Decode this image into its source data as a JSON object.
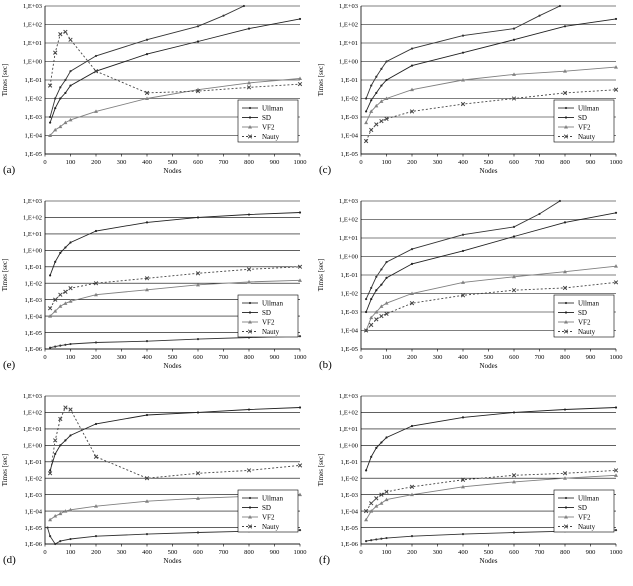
{
  "figure": {
    "series_styles": {
      "Ullman": {
        "color": "#333333",
        "dash": "",
        "marker": "dot"
      },
      "SD": {
        "color": "#222222",
        "dash": "",
        "marker": "dot"
      },
      "VF2": {
        "color": "#808080",
        "dash": "",
        "marker": "tri"
      },
      "Nauty": {
        "color": "#444444",
        "dash": "2,2",
        "marker": "x"
      }
    }
  },
  "chart_data": [
    {
      "type": "line",
      "panel_label": "(a)",
      "xlabel": "Nodes",
      "ylabel": "Times [sec]",
      "xlim": [
        0,
        1000
      ],
      "xticks": [
        0,
        100,
        200,
        300,
        400,
        500,
        600,
        700,
        800,
        900,
        1000
      ],
      "ylog": true,
      "ylim_exp": [
        -5,
        3
      ],
      "ytick_labels": [
        "1,E-05",
        "1,E-04",
        "1,E-03",
        "1,E-02",
        "1,E-01",
        "1,E+00",
        "1,E+01",
        "1,E+02",
        "1,E+03"
      ],
      "grid": "horizontal",
      "legend_position": "bottom-right",
      "series": [
        {
          "name": "Ullman",
          "x": [
            20,
            40,
            60,
            80,
            100,
            200,
            400,
            600,
            700,
            780
          ],
          "y": [
            0.001,
            0.01,
            0.04,
            0.1,
            0.3,
            2,
            15,
            80,
            300,
            1000
          ]
        },
        {
          "name": "SD",
          "x": [
            20,
            40,
            60,
            80,
            100,
            200,
            400,
            600,
            800,
            1000
          ],
          "y": [
            0.0005,
            0.003,
            0.01,
            0.02,
            0.05,
            0.3,
            2.5,
            12,
            60,
            200
          ]
        },
        {
          "name": "VF2",
          "x": [
            20,
            40,
            60,
            80,
            100,
            200,
            400,
            600,
            800,
            1000
          ],
          "y": [
            0.0001,
            0.0002,
            0.0003,
            0.0005,
            0.0007,
            0.002,
            0.01,
            0.03,
            0.07,
            0.12
          ]
        },
        {
          "name": "Nauty",
          "x": [
            20,
            40,
            60,
            80,
            100,
            200,
            400,
            600,
            800,
            1000
          ],
          "y": [
            0.05,
            3,
            30,
            40,
            15,
            0.3,
            0.02,
            0.025,
            0.04,
            0.06
          ]
        }
      ]
    },
    {
      "type": "line",
      "panel_label": "(b)",
      "xlabel": "Nodes",
      "ylabel": "Times [sec]",
      "xlim": [
        0,
        1000
      ],
      "xticks": [
        0,
        100,
        200,
        300,
        400,
        500,
        600,
        700,
        800,
        900,
        1000
      ],
      "ylog": true,
      "ylim_exp": [
        -5,
        3
      ],
      "ytick_labels": [
        "1,E-05",
        "1,E-04",
        "1,E-03",
        "1,E-02",
        "1,E-01",
        "1,E+00",
        "1,E+01",
        "1,E+02",
        "1,E+03"
      ],
      "grid": "horizontal",
      "legend_position": "bottom-right",
      "series": [
        {
          "name": "Ullman",
          "x": [
            20,
            40,
            60,
            80,
            100,
            200,
            400,
            600,
            700,
            780
          ],
          "y": [
            0.005,
            0.02,
            0.08,
            0.2,
            0.5,
            2.5,
            15,
            40,
            200,
            1000
          ]
        },
        {
          "name": "SD",
          "x": [
            20,
            40,
            60,
            80,
            100,
            200,
            400,
            600,
            800,
            1000
          ],
          "y": [
            0.001,
            0.005,
            0.015,
            0.03,
            0.07,
            0.4,
            2,
            12,
            70,
            230
          ]
        },
        {
          "name": "VF2",
          "x": [
            20,
            40,
            60,
            80,
            100,
            200,
            400,
            600,
            800,
            1000
          ],
          "y": [
            0.0001,
            0.0005,
            0.001,
            0.002,
            0.003,
            0.01,
            0.04,
            0.08,
            0.15,
            0.3
          ]
        },
        {
          "name": "Nauty",
          "x": [
            20,
            40,
            60,
            80,
            100,
            200,
            400,
            600,
            800,
            1000
          ],
          "y": [
            0.0001,
            0.0002,
            0.0004,
            0.0006,
            0.0008,
            0.003,
            0.008,
            0.015,
            0.02,
            0.04
          ]
        }
      ]
    },
    {
      "type": "line",
      "panel_label": "(c)",
      "xlabel": "Nodes",
      "ylabel": "Times [sec]",
      "xlim": [
        0,
        1000
      ],
      "xticks": [
        0,
        100,
        200,
        300,
        400,
        500,
        600,
        700,
        800,
        900,
        1000
      ],
      "ylog": true,
      "ylim_exp": [
        -5,
        3
      ],
      "ytick_labels": [
        "1,E-05",
        "1,E-04",
        "1,E-03",
        "1,E-02",
        "1,E-01",
        "1,E+00",
        "1,E+01",
        "1,E+02",
        "1,E+03"
      ],
      "grid": "horizontal",
      "legend_position": "bottom-right",
      "series": [
        {
          "name": "Ullman",
          "x": [
            20,
            40,
            60,
            80,
            100,
            200,
            400,
            600,
            700,
            780
          ],
          "y": [
            0.01,
            0.05,
            0.15,
            0.4,
            1,
            5,
            25,
            60,
            300,
            1000
          ]
        },
        {
          "name": "SD",
          "x": [
            20,
            40,
            60,
            80,
            100,
            200,
            400,
            600,
            800,
            1000
          ],
          "y": [
            0.002,
            0.008,
            0.02,
            0.05,
            0.1,
            0.6,
            3,
            15,
            80,
            200
          ]
        },
        {
          "name": "VF2",
          "x": [
            20,
            40,
            60,
            80,
            100,
            200,
            400,
            600,
            800,
            1000
          ],
          "y": [
            0.0005,
            0.002,
            0.004,
            0.007,
            0.01,
            0.03,
            0.1,
            0.2,
            0.3,
            0.5
          ]
        },
        {
          "name": "Nauty",
          "x": [
            20,
            40,
            60,
            80,
            100,
            200,
            400,
            600,
            800,
            1000
          ],
          "y": [
            5e-05,
            0.0002,
            0.0004,
            0.0006,
            0.0008,
            0.002,
            0.005,
            0.01,
            0.02,
            0.03
          ]
        }
      ]
    },
    {
      "type": "line",
      "panel_label": "(d)",
      "xlabel": "Nodes",
      "ylabel": "Times [sec]",
      "xlim": [
        0,
        1000
      ],
      "xticks": [
        0,
        100,
        200,
        300,
        400,
        500,
        600,
        700,
        800,
        900,
        1000
      ],
      "ylog": true,
      "ylim_exp": [
        -6,
        3
      ],
      "ytick_labels": [
        "1,E-06",
        "1,E-05",
        "1,E-04",
        "1,E-03",
        "1,E-02",
        "1,E-01",
        "1,E+00",
        "1,E+01",
        "1,E+02",
        "1,E+03"
      ],
      "grid": "horizontal",
      "legend_position": "bottom-right",
      "series": [
        {
          "name": "Ullman",
          "x": [
            10,
            20,
            40,
            60,
            100,
            200,
            400,
            600,
            800,
            1000
          ],
          "y": [
            1e-05,
            3e-06,
            1e-06,
            1.5e-06,
            2e-06,
            3e-06,
            4e-06,
            5e-06,
            6e-06,
            7e-06
          ]
        },
        {
          "name": "SD",
          "x": [
            20,
            40,
            60,
            80,
            100,
            200,
            400,
            600,
            800,
            1000
          ],
          "y": [
            0.03,
            0.3,
            1,
            2,
            4,
            20,
            70,
            100,
            150,
            200
          ]
        },
        {
          "name": "VF2",
          "x": [
            20,
            40,
            60,
            80,
            100,
            200,
            400,
            600,
            800,
            1000
          ],
          "y": [
            3e-05,
            5e-05,
            7e-05,
            0.0001,
            0.00012,
            0.0002,
            0.0004,
            0.0006,
            0.0008,
            0.001
          ]
        },
        {
          "name": "Nauty",
          "x": [
            20,
            40,
            60,
            80,
            100,
            200,
            400,
            600,
            800,
            1000
          ],
          "y": [
            0.02,
            2,
            40,
            200,
            150,
            0.2,
            0.01,
            0.02,
            0.03,
            0.06
          ]
        }
      ]
    },
    {
      "type": "line",
      "panel_label": "(e)",
      "xlabel": "Nodes",
      "ylabel": "Times [sec]",
      "xlim": [
        0,
        1000
      ],
      "xticks": [
        0,
        100,
        200,
        300,
        400,
        500,
        600,
        700,
        800,
        900,
        1000
      ],
      "ylog": true,
      "ylim_exp": [
        -6,
        3
      ],
      "ytick_labels": [
        "1,E-06",
        "1,E-05",
        "1,E-04",
        "1,E-03",
        "1,E-02",
        "1,E-01",
        "1,E+00",
        "1,E+01",
        "1,E+02",
        "1,E+03"
      ],
      "grid": "horizontal",
      "legend_position": "bottom-right",
      "series": [
        {
          "name": "Ullman",
          "x": [
            20,
            40,
            60,
            80,
            100,
            200,
            400,
            600,
            800,
            1000
          ],
          "y": [
            1.2e-06,
            1.4e-06,
            1.6e-06,
            1.8e-06,
            2e-06,
            2.5e-06,
            3e-06,
            4e-06,
            5e-06,
            6e-06
          ]
        },
        {
          "name": "SD",
          "x": [
            20,
            40,
            60,
            80,
            100,
            200,
            400,
            600,
            800,
            1000
          ],
          "y": [
            0.03,
            0.2,
            0.7,
            1.5,
            3,
            15,
            50,
            100,
            150,
            200
          ]
        },
        {
          "name": "VF2",
          "x": [
            20,
            40,
            60,
            80,
            100,
            200,
            400,
            600,
            800,
            1000
          ],
          "y": [
            0.0001,
            0.0002,
            0.0004,
            0.0006,
            0.0008,
            0.002,
            0.004,
            0.008,
            0.012,
            0.015
          ]
        },
        {
          "name": "Nauty",
          "x": [
            20,
            40,
            60,
            80,
            100,
            200,
            400,
            600,
            800,
            1000
          ],
          "y": [
            0.0003,
            0.001,
            0.002,
            0.003,
            0.005,
            0.01,
            0.02,
            0.04,
            0.07,
            0.1
          ]
        }
      ]
    },
    {
      "type": "line",
      "panel_label": "(f)",
      "xlabel": "Nodes",
      "ylabel": "Times [sec]",
      "xlim": [
        0,
        1000
      ],
      "xticks": [
        0,
        100,
        200,
        300,
        400,
        500,
        600,
        700,
        800,
        900,
        1000
      ],
      "ylog": true,
      "ylim_exp": [
        -6,
        3
      ],
      "ytick_labels": [
        "1,E-06",
        "1,E-05",
        "1,E-04",
        "1,E-03",
        "1,E-02",
        "1,E-01",
        "1,E+00",
        "1,E+01",
        "1,E+02",
        "1,E+03"
      ],
      "grid": "horizontal",
      "legend_position": "bottom-right",
      "series": [
        {
          "name": "Ullman",
          "x": [
            20,
            40,
            60,
            80,
            100,
            200,
            400,
            600,
            800,
            1000
          ],
          "y": [
            1.5e-06,
            1.7e-06,
            1.9e-06,
            2.1e-06,
            2.3e-06,
            3e-06,
            4e-06,
            5e-06,
            6e-06,
            7e-06
          ]
        },
        {
          "name": "SD",
          "x": [
            20,
            40,
            60,
            80,
            100,
            200,
            400,
            600,
            800,
            1000
          ],
          "y": [
            0.03,
            0.2,
            0.7,
            1.5,
            3,
            15,
            50,
            100,
            150,
            200
          ]
        },
        {
          "name": "VF2",
          "x": [
            20,
            40,
            60,
            80,
            100,
            200,
            400,
            600,
            800,
            1000
          ],
          "y": [
            3e-05,
            0.0001,
            0.0002,
            0.0003,
            0.0005,
            0.001,
            0.003,
            0.006,
            0.01,
            0.015
          ]
        },
        {
          "name": "Nauty",
          "x": [
            20,
            40,
            60,
            80,
            100,
            200,
            400,
            600,
            800,
            1000
          ],
          "y": [
            0.0001,
            0.0003,
            0.0006,
            0.001,
            0.0015,
            0.003,
            0.008,
            0.015,
            0.02,
            0.03
          ]
        }
      ]
    }
  ]
}
